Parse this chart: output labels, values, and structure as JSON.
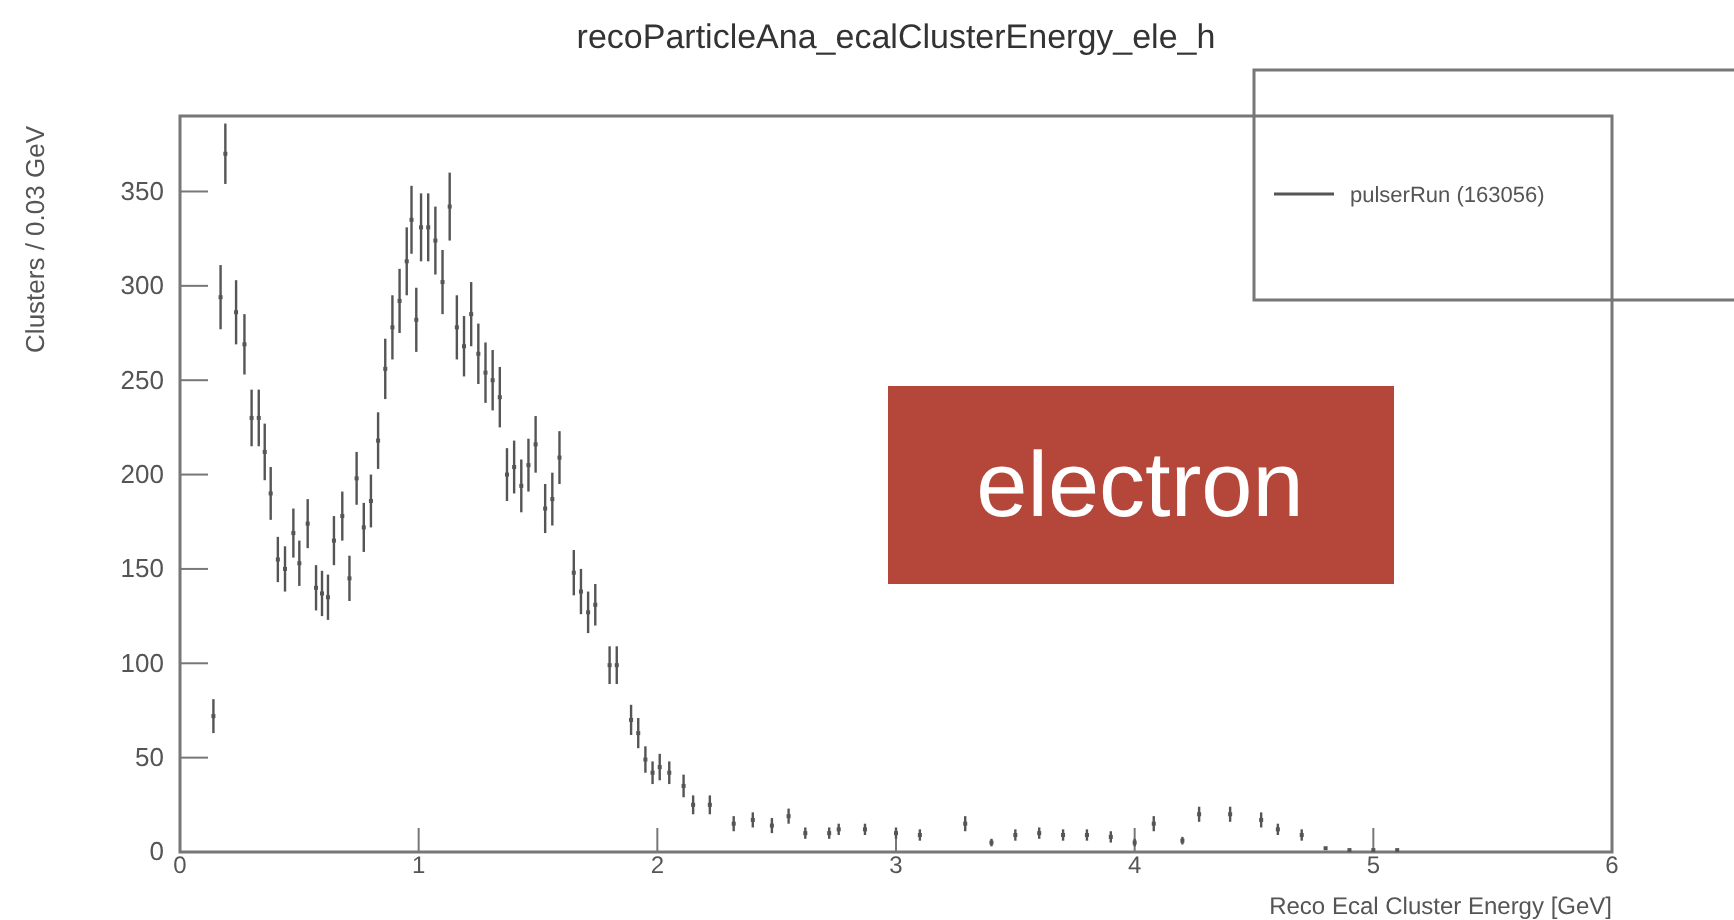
{
  "chart_data": {
    "type": "scatter",
    "title": "recoParticleAna_ecalClusterEnergy_ele_h",
    "xlabel": "Reco Ecal Cluster Energy [GeV]",
    "ylabel": "Clusters / 0.03 GeV",
    "annotations": [
      "electron"
    ],
    "xlim": [
      0,
      6
    ],
    "xticks": [
      0,
      1,
      2,
      3,
      4,
      5,
      6
    ],
    "ylim": [
      0,
      390
    ],
    "yticks": [
      0,
      50,
      100,
      150,
      200,
      250,
      300,
      350
    ],
    "grid": false,
    "legend": "top right",
    "marker": "square",
    "series": [
      {
        "name": "pulserRun (163056)",
        "color": "#555555",
        "x": [
          0.14,
          0.17,
          0.19,
          0.235,
          0.27,
          0.3,
          0.33,
          0.355,
          0.38,
          0.41,
          0.44,
          0.475,
          0.5,
          0.535,
          0.57,
          0.595,
          0.62,
          0.645,
          0.68,
          0.71,
          0.74,
          0.77,
          0.8,
          0.83,
          0.86,
          0.89,
          0.92,
          0.95,
          0.97,
          0.99,
          1.01,
          1.04,
          1.07,
          1.1,
          1.13,
          1.16,
          1.19,
          1.22,
          1.25,
          1.28,
          1.31,
          1.34,
          1.37,
          1.4,
          1.43,
          1.46,
          1.49,
          1.53,
          1.56,
          1.59,
          1.65,
          1.68,
          1.71,
          1.74,
          1.8,
          1.83,
          1.89,
          1.92,
          1.95,
          1.98,
          2.01,
          2.05,
          2.11,
          2.15,
          2.22,
          2.32,
          2.4,
          2.48,
          2.55,
          2.62,
          2.72,
          2.76,
          2.87,
          3.0,
          3.1,
          3.29,
          3.4,
          3.5,
          3.6,
          3.7,
          3.8,
          3.9,
          4.0,
          4.08,
          4.2,
          4.27,
          4.4,
          4.53,
          4.6,
          4.7,
          4.8,
          4.9,
          5.0,
          5.1
        ],
        "values": [
          72,
          294,
          370,
          286,
          269,
          230,
          230,
          212,
          190,
          155,
          150,
          169,
          153,
          174,
          140,
          137,
          135,
          165,
          178,
          145,
          198,
          172,
          186,
          218,
          256,
          278,
          292,
          313,
          335,
          282,
          331,
          331,
          324,
          302,
          342,
          278,
          268,
          285,
          264,
          254,
          250,
          241,
          200,
          204,
          194,
          205,
          216,
          182,
          187,
          209,
          148,
          138,
          127,
          131,
          99,
          99,
          70,
          63,
          49,
          42,
          45,
          42,
          35,
          25,
          25,
          15,
          17,
          14,
          19,
          10,
          10,
          12,
          12,
          10,
          9,
          15,
          5,
          9,
          10,
          9,
          9,
          8,
          5,
          15,
          6,
          20,
          20,
          17,
          12,
          9,
          2,
          1,
          1,
          1
        ],
        "errors": [
          9,
          17,
          16,
          17,
          16,
          15,
          15,
          15,
          14,
          12,
          12,
          13,
          12,
          13,
          12,
          12,
          12,
          13,
          13,
          12,
          14,
          13,
          14,
          15,
          16,
          17,
          17,
          18,
          18,
          17,
          18,
          18,
          18,
          17,
          18,
          17,
          16,
          17,
          16,
          16,
          16,
          16,
          14,
          14,
          14,
          14,
          15,
          13,
          14,
          14,
          12,
          12,
          11,
          11,
          10,
          10,
          8,
          8,
          7,
          6,
          7,
          6,
          6,
          5,
          5,
          4,
          4,
          4,
          4,
          3,
          3,
          3,
          3,
          3,
          3,
          4,
          2,
          3,
          3,
          3,
          3,
          3,
          2,
          4,
          2,
          4,
          4,
          4,
          3,
          3,
          null,
          null,
          null,
          null
        ]
      }
    ]
  }
}
